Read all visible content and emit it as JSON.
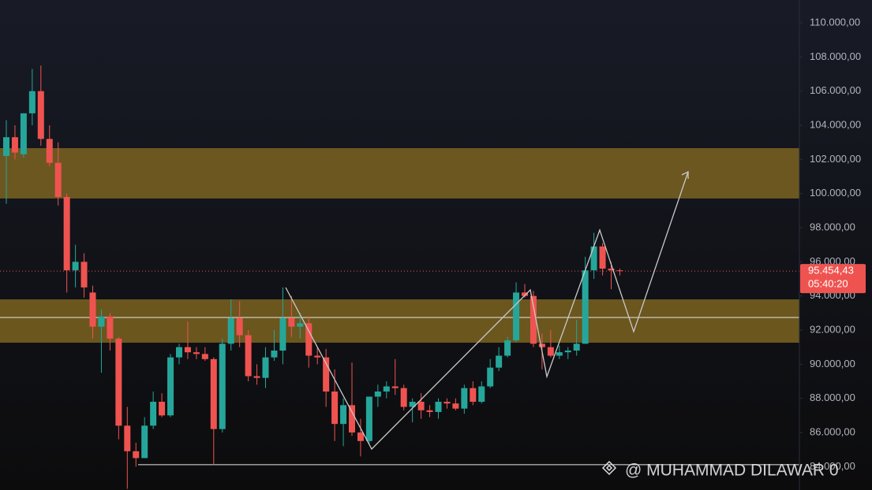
{
  "chart_data": {
    "type": "candlestick",
    "ylim": [
      82630,
      111340
    ],
    "yticks": [
      {
        "value": 84000,
        "label": "84.000,00"
      },
      {
        "value": 86000,
        "label": "86.000,00"
      },
      {
        "value": 88000,
        "label": "88.000,00"
      },
      {
        "value": 90000,
        "label": "90.000,00"
      },
      {
        "value": 92000,
        "label": "92.000,00"
      },
      {
        "value": 94000,
        "label": "94.000,00"
      },
      {
        "value": 96000,
        "label": "96.000,00"
      },
      {
        "value": 98000,
        "label": "98.000,00"
      },
      {
        "value": 100000,
        "label": "100.000,00"
      },
      {
        "value": 102000,
        "label": "102.000,00"
      },
      {
        "value": 104000,
        "label": "104.000,00"
      },
      {
        "value": 106000,
        "label": "106.000,00"
      },
      {
        "value": 108000,
        "label": "108.000,00"
      },
      {
        "value": 110000,
        "label": "110.000,00"
      }
    ],
    "up_color": "#26a69a",
    "down_color": "#ef5350",
    "open": [
      102200,
      103300,
      102300,
      104700,
      106000,
      103200,
      101800,
      99800,
      95500,
      96000,
      94200,
      92200,
      92800,
      91500,
      86400,
      84900,
      84500,
      86400,
      87800,
      87000,
      90400,
      91000,
      90700,
      90600,
      90300,
      86200,
      91200,
      92700,
      91700,
      89300,
      89200,
      90400,
      90800,
      92700,
      92200,
      92400,
      90500,
      90400,
      88400,
      86500,
      87600,
      86000,
      85500,
      88100,
      88400,
      88700,
      88600,
      87500,
      87800,
      87300,
      87200,
      87800,
      87700,
      87400,
      88600,
      87800,
      88700,
      89800,
      90500,
      91400,
      94200,
      94000,
      91200,
      91000,
      90500,
      90700,
      90800,
      91200,
      95500,
      96900,
      95600,
      95500
    ],
    "high": [
      104300,
      104000,
      104700,
      107300,
      107500,
      104000,
      103000,
      100000,
      97000,
      96500,
      94600,
      93200,
      93000,
      91600,
      87500,
      85400,
      86900,
      88400,
      88300,
      90600,
      91200,
      92500,
      91000,
      91000,
      90400,
      91500,
      93800,
      93700,
      92000,
      90000,
      91000,
      92000,
      94500,
      94000,
      93000,
      92800,
      91000,
      90900,
      89700,
      88000,
      90100,
      86800,
      88000,
      88800,
      89000,
      90300,
      88800,
      88000,
      88300,
      87600,
      88000,
      88000,
      88000,
      88800,
      89000,
      89000,
      90300,
      91000,
      91600,
      94800,
      94700,
      94300,
      91800,
      92000,
      91100,
      91000,
      92600,
      96300,
      97700,
      97100,
      96000,
      95600
    ],
    "low": [
      99400,
      102000,
      102100,
      104000,
      102800,
      101600,
      99300,
      94200,
      94500,
      93900,
      91500,
      89500,
      90800,
      85600,
      82700,
      84000,
      84500,
      86200,
      86900,
      86900,
      90000,
      90300,
      90300,
      90200,
      84100,
      86000,
      90800,
      91000,
      89000,
      88800,
      88600,
      90200,
      90000,
      91600,
      91500,
      89800,
      90000,
      87500,
      85500,
      85200,
      85800,
      84600,
      85300,
      87500,
      88000,
      88200,
      87300,
      86600,
      86800,
      86900,
      86800,
      87400,
      87300,
      87100,
      87600,
      87700,
      88600,
      89600,
      90400,
      91300,
      93900,
      91000,
      89700,
      90400,
      90300,
      90300,
      90500,
      91200,
      95000,
      95200,
      94400,
      95200
    ],
    "close": [
      103300,
      102400,
      104700,
      106000,
      103200,
      101800,
      99800,
      95500,
      96000,
      94500,
      92200,
      92800,
      91500,
      86400,
      84900,
      84500,
      86400,
      87800,
      87000,
      90400,
      91000,
      90700,
      90600,
      90300,
      86200,
      91200,
      92700,
      91700,
      89300,
      89200,
      90400,
      90800,
      92700,
      92200,
      92400,
      90500,
      90400,
      88400,
      86500,
      87600,
      86000,
      85500,
      88100,
      88400,
      88700,
      88600,
      87500,
      87800,
      87300,
      87200,
      87800,
      87700,
      87400,
      88600,
      87800,
      88700,
      89800,
      90500,
      91400,
      94200,
      94000,
      91200,
      91000,
      90500,
      90700,
      90800,
      91200,
      95500,
      96900,
      95600,
      95500,
      95454
    ],
    "zones": [
      {
        "from": 99710,
        "to": 102660
      },
      {
        "from": 91260,
        "to": 93800
      }
    ],
    "levels": [
      92740,
      84110
    ],
    "last_price": {
      "value": 95454.43,
      "label": "95.454,43"
    },
    "countdown": "05:40:20",
    "watermark": "@ MUHAMMAD DILAWAR 0"
  }
}
